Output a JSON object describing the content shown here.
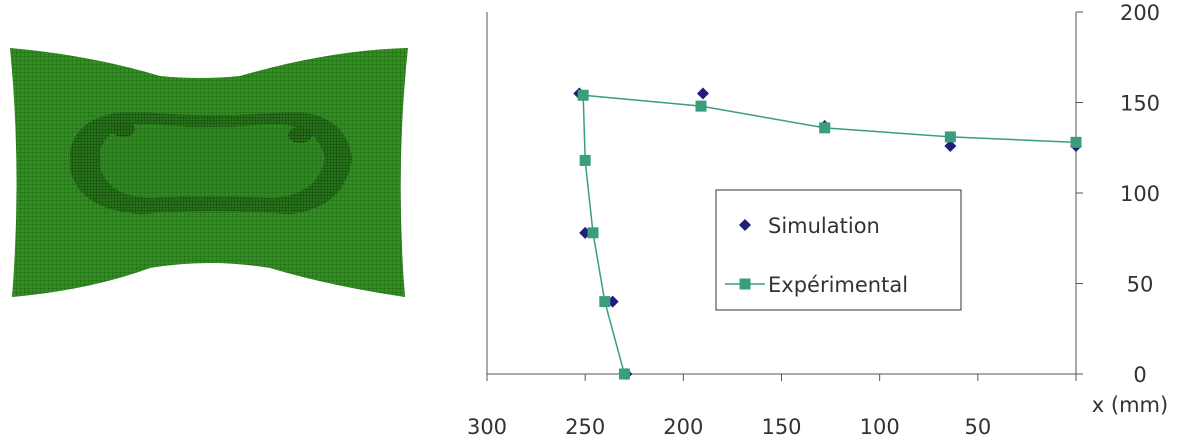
{
  "mesh": {
    "description_icon": "deformed-sheet-mesh-icon",
    "color": "#2e8b1e"
  },
  "chart_data": {
    "type": "scatter",
    "x_axis": {
      "label": "x (mm)",
      "ticks": [
        300,
        250,
        200,
        150,
        100,
        50
      ],
      "range": [
        300,
        0
      ],
      "reversed": true
    },
    "y_axis": {
      "label": "",
      "ticks": [
        0,
        50,
        100,
        150,
        200
      ],
      "range": [
        0,
        200
      ],
      "position": "right"
    },
    "legend_position": "center-right",
    "grid": false,
    "series": [
      {
        "name": "Simulation",
        "marker": "diamond",
        "line": false,
        "color": "#1f1f7a",
        "points": [
          {
            "x": 253,
            "y": 155
          },
          {
            "x": 190,
            "y": 155
          },
          {
            "x": 128,
            "y": 137
          },
          {
            "x": 64,
            "y": 126
          },
          {
            "x": 0,
            "y": 126
          },
          {
            "x": 250,
            "y": 78
          },
          {
            "x": 236,
            "y": 40
          },
          {
            "x": 229,
            "y": 0
          }
        ]
      },
      {
        "name": "Expérimental",
        "marker": "square",
        "line": true,
        "color": "#3a9e7e",
        "points": [
          {
            "x": 230,
            "y": 0
          },
          {
            "x": 240,
            "y": 40
          },
          {
            "x": 246,
            "y": 78
          },
          {
            "x": 250,
            "y": 118
          },
          {
            "x": 251,
            "y": 154
          },
          {
            "x": 191,
            "y": 148
          },
          {
            "x": 128,
            "y": 136
          },
          {
            "x": 64,
            "y": 131
          },
          {
            "x": 0,
            "y": 128
          }
        ]
      }
    ]
  }
}
